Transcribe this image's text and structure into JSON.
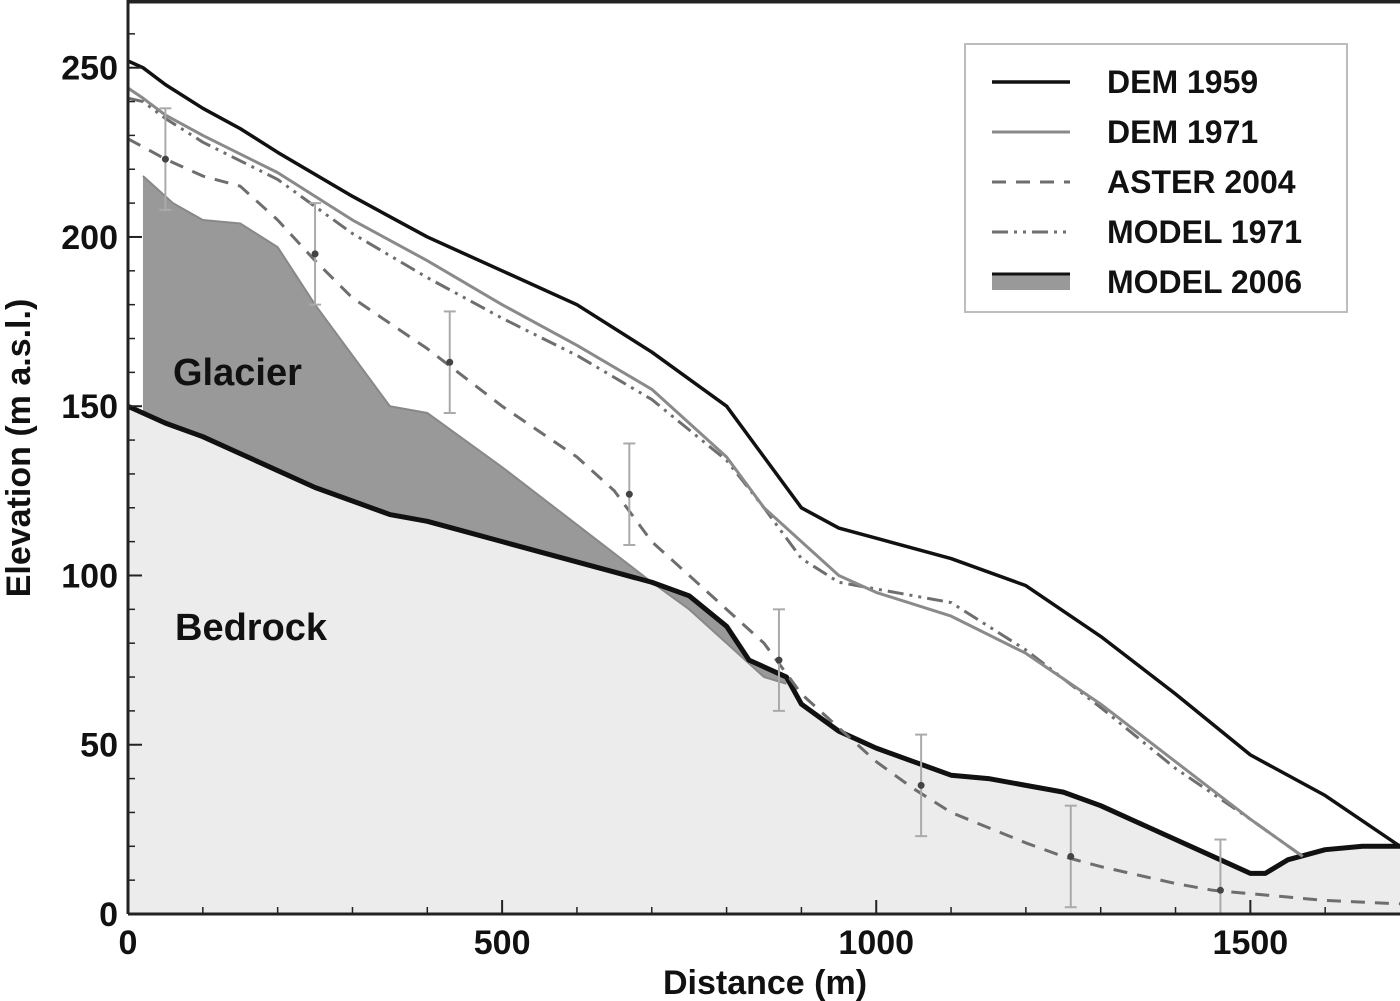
{
  "chart_data": {
    "type": "line",
    "xlabel": "Distance (m)",
    "ylabel": "Elevation (m a.s.l.)",
    "xlim": [
      0,
      1700
    ],
    "ylim": [
      0,
      270
    ],
    "xticks": [
      0,
      500,
      1000,
      1500
    ],
    "yticks": [
      0,
      50,
      100,
      150,
      200,
      250
    ],
    "grid": false,
    "legend_position": "top-right",
    "region_labels": {
      "glacier": "Glacier",
      "bedrock": "Bedrock"
    },
    "series": [
      {
        "name": "DEM 1959",
        "style": "solid-black",
        "x": [
          0,
          20,
          50,
          100,
          150,
          200,
          300,
          400,
          500,
          600,
          700,
          800,
          850,
          900,
          950,
          1000,
          1100,
          1200,
          1300,
          1400,
          1500,
          1600,
          1700
        ],
        "y": [
          252,
          250,
          245,
          238,
          232,
          225,
          212,
          200,
          190,
          180,
          166,
          150,
          135,
          120,
          114,
          111,
          105,
          97,
          82,
          65,
          47,
          35,
          20
        ]
      },
      {
        "name": "DEM 1971",
        "style": "solid-gray",
        "x": [
          0,
          20,
          50,
          100,
          200,
          300,
          400,
          500,
          600,
          700,
          800,
          850,
          900,
          950,
          1000,
          1100,
          1200,
          1300,
          1400,
          1500,
          1570
        ],
        "y": [
          244,
          241,
          236,
          230,
          219,
          205,
          193,
          180,
          168,
          155,
          135,
          120,
          110,
          100,
          95,
          88,
          77,
          62,
          45,
          28,
          17
        ]
      },
      {
        "name": "ASTER 2004",
        "style": "dashed-gray",
        "x": [
          0,
          50,
          100,
          150,
          200,
          250,
          300,
          400,
          500,
          600,
          650,
          700,
          800,
          850,
          900,
          1000,
          1050,
          1100,
          1200,
          1250,
          1300,
          1400,
          1450,
          1500,
          1600,
          1700
        ],
        "y": [
          229,
          223,
          218,
          215,
          205,
          193,
          182,
          167,
          150,
          135,
          125,
          110,
          90,
          80,
          65,
          45,
          37,
          30,
          21,
          17,
          14,
          9,
          7,
          6,
          4,
          3
        ]
      },
      {
        "name": "MODEL 1971",
        "style": "dashdot-gray",
        "x": [
          0,
          20,
          50,
          100,
          200,
          300,
          400,
          500,
          600,
          700,
          800,
          850,
          900,
          950,
          1000,
          1100,
          1200,
          1300,
          1400,
          1500,
          1570
        ],
        "y": [
          241,
          240,
          235,
          228,
          217,
          201,
          188,
          176,
          165,
          152,
          134,
          120,
          105,
          98,
          96,
          92,
          78,
          61,
          43,
          28,
          17
        ]
      },
      {
        "name": "MODEL 2006",
        "style": "filled-dark-gray",
        "x": [
          20,
          60,
          100,
          150,
          200,
          250,
          300,
          350,
          400,
          450,
          500,
          600,
          700,
          750,
          800,
          850,
          880
        ],
        "y": [
          218,
          210,
          205,
          204,
          197,
          180,
          165,
          150,
          148,
          140,
          132,
          115,
          98,
          90,
          80,
          70,
          68
        ]
      },
      {
        "name": "Bedrock",
        "style": "bedrock-surface",
        "x": [
          0,
          50,
          100,
          150,
          200,
          250,
          300,
          350,
          400,
          450,
          500,
          550,
          600,
          650,
          700,
          750,
          800,
          830,
          880,
          900,
          950,
          1000,
          1050,
          1100,
          1150,
          1200,
          1250,
          1300,
          1350,
          1400,
          1450,
          1500,
          1520,
          1550,
          1600,
          1650,
          1700
        ],
        "y": [
          150,
          145,
          141,
          136,
          131,
          126,
          122,
          118,
          116,
          113,
          110,
          107,
          104,
          101,
          98,
          94,
          85,
          75,
          70,
          62,
          54,
          49,
          45,
          41,
          40,
          38,
          36,
          32,
          27,
          22,
          17,
          12,
          12,
          16,
          19,
          20,
          20
        ]
      }
    ],
    "error_bars": {
      "x": [
        50,
        250,
        430,
        670,
        870,
        1060,
        1260,
        1460
      ],
      "y": [
        223,
        195,
        163,
        124,
        75,
        38,
        17,
        7
      ],
      "err": [
        15,
        15,
        15,
        15,
        15,
        15,
        15,
        15
      ]
    }
  },
  "colors": {
    "bedrock_fill": "#ececec",
    "glacier_fill": "#999999",
    "dem1959": "#111111",
    "dem1971": "#8a8a8a",
    "aster2004": "#6e6e6e",
    "model1971": "#6e6e6e",
    "bedrock_line": "#111111",
    "errorbar": "#aaaaaa"
  }
}
